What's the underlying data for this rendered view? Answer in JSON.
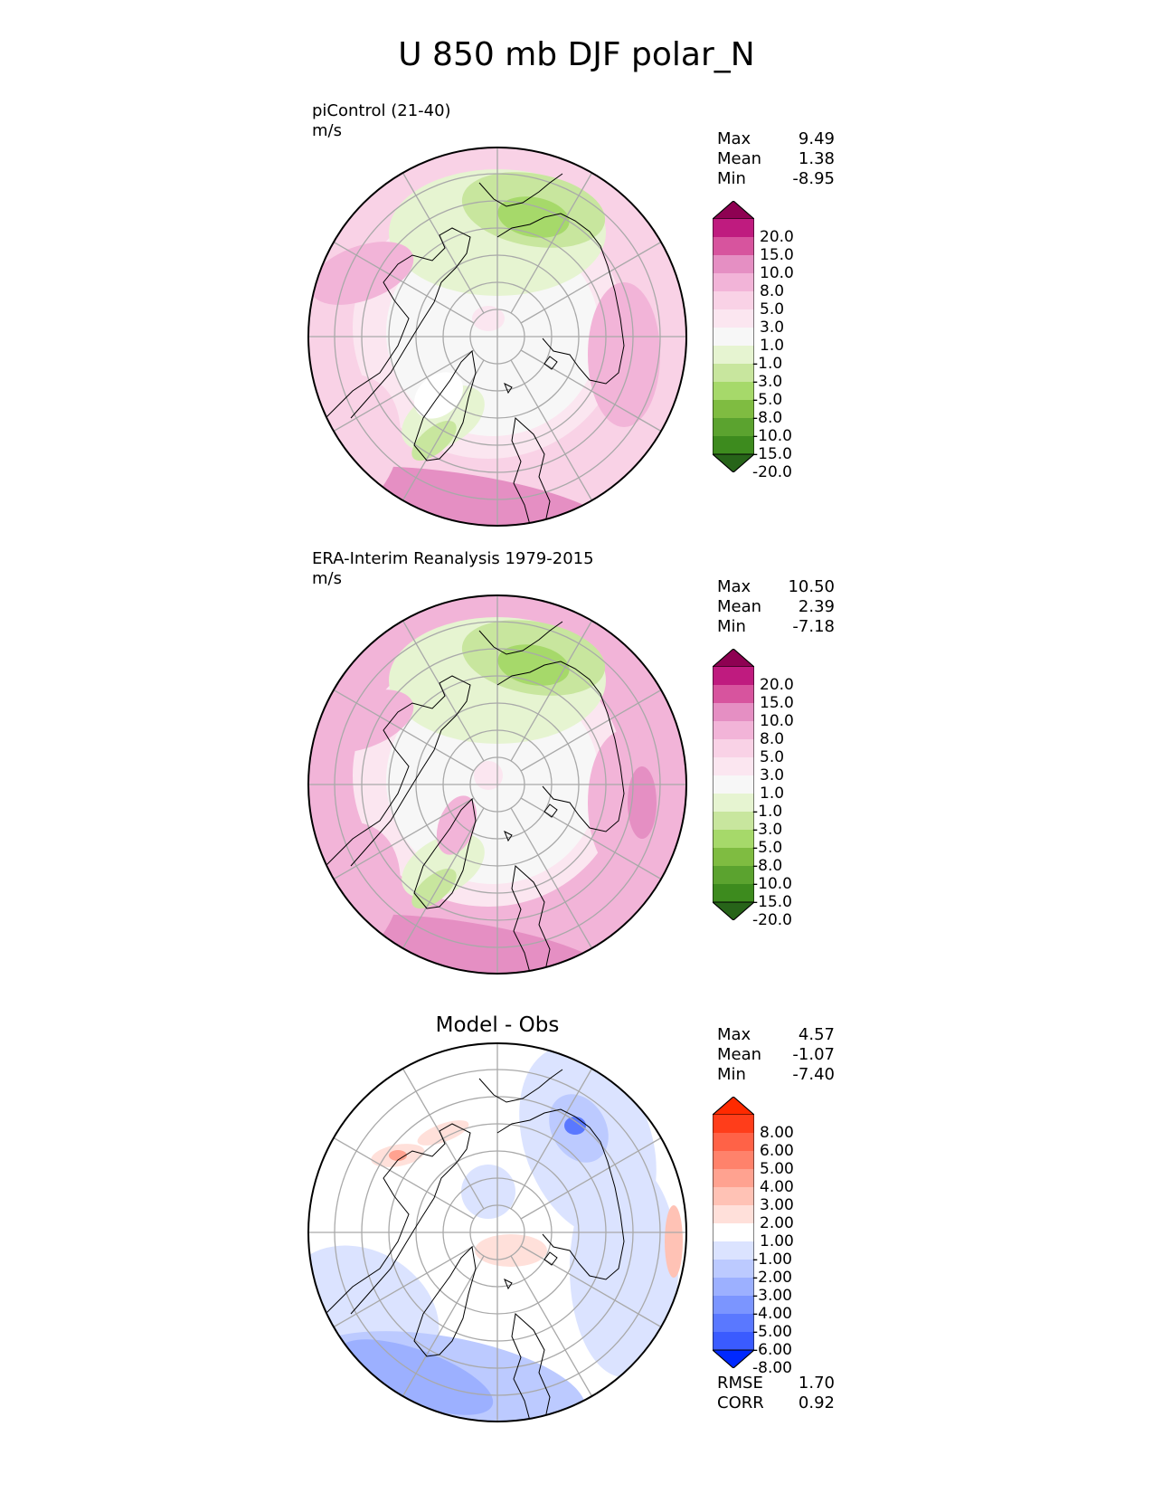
{
  "title": "U 850 mb DJF polar_N",
  "palettes": {
    "field": [
      "#276419",
      "#3d8b1e",
      "#5ba32f",
      "#7fbc41",
      "#a6d96a",
      "#c8e69e",
      "#e6f4d1",
      "#f7f7f7",
      "#fbe6f0",
      "#f9d2e6",
      "#f2b4d8",
      "#e58fc3",
      "#d7549e",
      "#bf1b7f",
      "#8e0152"
    ],
    "diff": [
      "#0029ff",
      "#3a5bff",
      "#5a78ff",
      "#7b95ff",
      "#9cb0ff",
      "#bccaff",
      "#dbe3ff",
      "#ffffff",
      "#ffe0da",
      "#ffc2b5",
      "#ffa290",
      "#ff826b",
      "#ff6247",
      "#ff3d1a",
      "#ff2a00"
    ]
  },
  "panels": [
    {
      "label": "piControl (21-40)",
      "units": "m/s",
      "stats": {
        "max_label": "Max",
        "max": "9.49",
        "mean_label": "Mean",
        "mean": "1.38",
        "min_label": "Min",
        "min": "-8.95"
      },
      "colorbar": {
        "palette": "field",
        "labels": [
          "20.0",
          "15.0",
          "10.0",
          "8.0",
          "5.0",
          "3.0",
          "1.0",
          "-1.0",
          "-3.0",
          "-5.0",
          "-8.0",
          "-10.0",
          "-15.0",
          "-20.0"
        ]
      }
    },
    {
      "label": "ERA-Interim Reanalysis 1979-2015",
      "units": "m/s",
      "stats": {
        "max_label": "Max",
        "max": "10.50",
        "mean_label": "Mean",
        "mean": "2.39",
        "min_label": "Min",
        "min": "-7.18"
      },
      "colorbar": {
        "palette": "field",
        "labels": [
          "20.0",
          "15.0",
          "10.0",
          "8.0",
          "5.0",
          "3.0",
          "1.0",
          "-1.0",
          "-3.0",
          "-5.0",
          "-8.0",
          "-10.0",
          "-15.0",
          "-20.0"
        ]
      }
    },
    {
      "title": "Model - Obs",
      "stats": {
        "max_label": "Max",
        "max": "4.57",
        "mean_label": "Mean",
        "mean": "-1.07",
        "min_label": "Min",
        "min": "-7.40"
      },
      "colorbar": {
        "palette": "diff",
        "labels": [
          "8.00",
          "6.00",
          "5.00",
          "4.00",
          "3.00",
          "2.00",
          "1.00",
          "-1.00",
          "-2.00",
          "-3.00",
          "-4.00",
          "-5.00",
          "-6.00",
          "-8.00"
        ]
      },
      "extra": {
        "rmse_label": "RMSE",
        "rmse": "1.70",
        "corr_label": "CORR",
        "corr": "0.92"
      }
    }
  ]
}
